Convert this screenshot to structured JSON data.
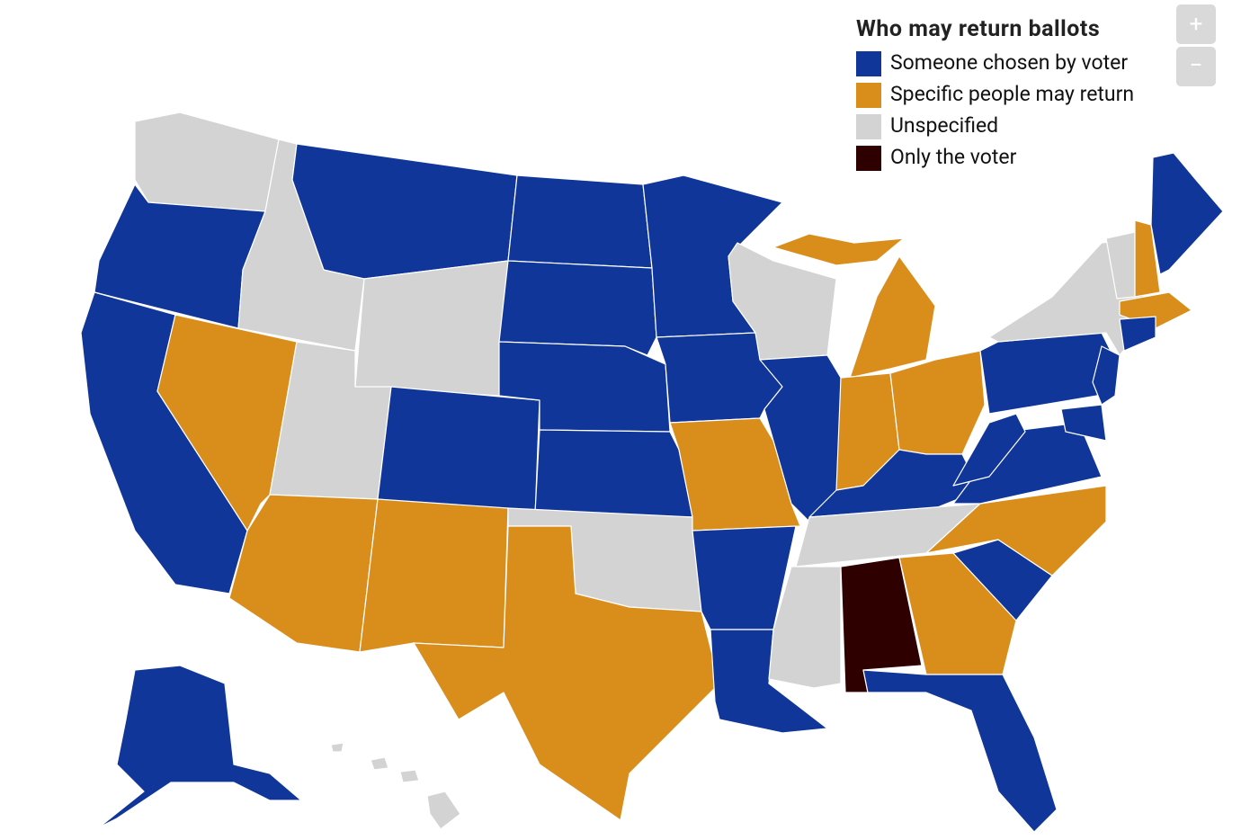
{
  "legend": {
    "title": "Who may return ballots",
    "items": [
      {
        "label": "Someone chosen by voter",
        "color": "#10369a"
      },
      {
        "label": "Specific people may return",
        "color": "#d98e1c"
      },
      {
        "label": "Unspecified",
        "color": "#d3d3d3"
      },
      {
        "label": "Only the voter",
        "color": "#2e0000"
      }
    ]
  },
  "zoom": {
    "in": "+",
    "out": "−"
  }
}
